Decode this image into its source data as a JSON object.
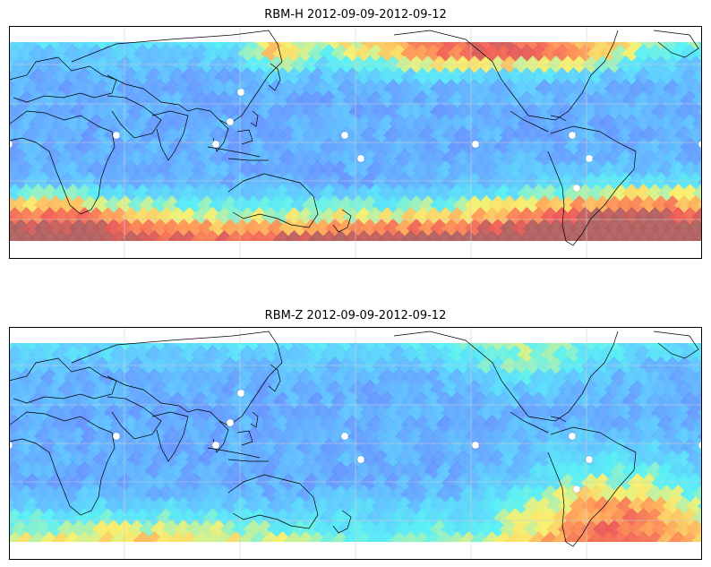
{
  "panels": [
    {
      "title": "RBM-H 2012-09-09-2012-09-12",
      "variant": "H"
    },
    {
      "title": "RBM-Z 2012-09-09-2012-09-12",
      "variant": "Z"
    }
  ],
  "colors": {
    "low": "#6b63ff",
    "mid": "#5ec7ff",
    "cyan": "#55f0f5",
    "yellow": "#f8f06c",
    "orange": "#ff9b55",
    "high": "#ef5a55",
    "max": "#b0605f",
    "coast": "#000000",
    "grid": "#d0d0d0"
  }
}
